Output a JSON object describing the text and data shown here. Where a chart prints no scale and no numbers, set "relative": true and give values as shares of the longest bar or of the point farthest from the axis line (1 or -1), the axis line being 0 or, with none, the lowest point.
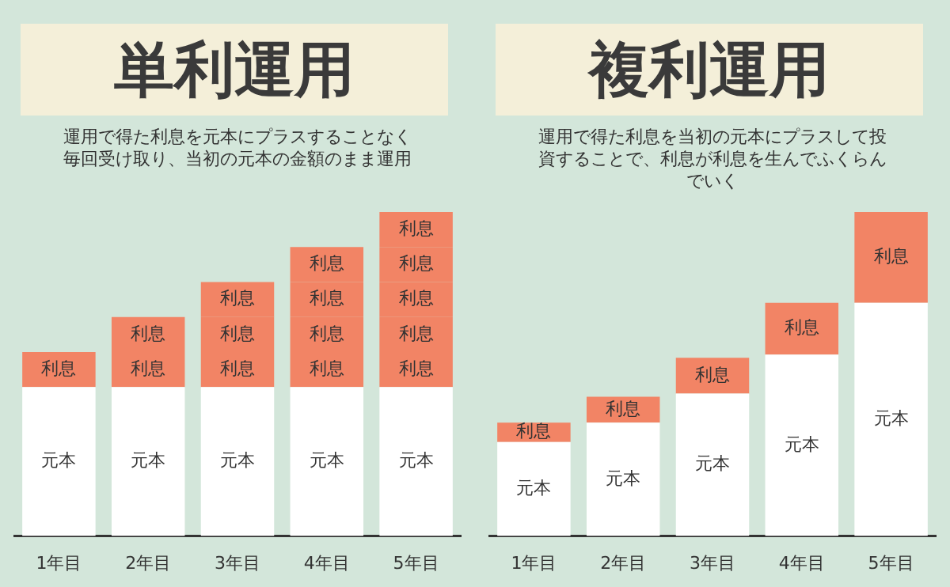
{
  "chart_data": [
    {
      "type": "bar",
      "title": "単利運用",
      "subtitle": "運用で得た利息を元本にプラスすることなく毎回受け取り、当初の元本の金額のまま運用",
      "categories": [
        "1年目",
        "2年目",
        "3年目",
        "4年目",
        "5年目"
      ],
      "stacked": true,
      "relative": true,
      "series": [
        {
          "name": "元本",
          "color": "#ffffff",
          "values": [
            0.46,
            0.46,
            0.46,
            0.46,
            0.46
          ]
        },
        {
          "name": "利息",
          "color": "#f28465",
          "values": [
            0.108,
            0.108,
            0.108,
            0.108,
            0.108
          ]
        },
        {
          "name": "利息",
          "color": "#f28465",
          "values": [
            null,
            0.108,
            0.108,
            0.108,
            0.108
          ]
        },
        {
          "name": "利息",
          "color": "#f28465",
          "values": [
            null,
            null,
            0.108,
            0.108,
            0.108
          ]
        },
        {
          "name": "利息",
          "color": "#f28465",
          "values": [
            null,
            null,
            null,
            0.108,
            0.108
          ]
        },
        {
          "name": "利息",
          "color": "#f28465",
          "values": [
            null,
            null,
            null,
            null,
            0.108
          ]
        }
      ]
    },
    {
      "type": "bar",
      "title": "複利運用",
      "subtitle": "運用で得た利息を当初の元本にプラスして投資することで、利息が利息を生んでふくらんでいく",
      "categories": [
        "1年目",
        "2年目",
        "3年目",
        "4年目",
        "5年目"
      ],
      "stacked": true,
      "relative": true,
      "series": [
        {
          "name": "元本",
          "color": "#ffffff",
          "values": [
            0.29,
            0.35,
            0.44,
            0.56,
            0.72
          ]
        },
        {
          "name": "利息",
          "color": "#f28465",
          "values": [
            0.06,
            0.08,
            0.11,
            0.16,
            0.28
          ]
        }
      ]
    }
  ]
}
